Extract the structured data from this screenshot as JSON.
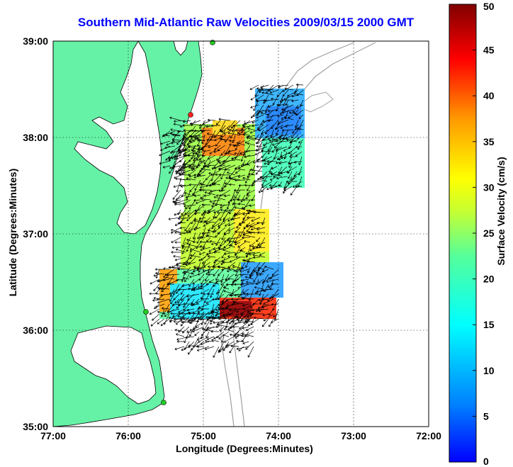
{
  "title": "Southern Mid-Atlantic Raw Velocities 2009/03/15 2000 GMT",
  "axes": {
    "xlabel": "Longitude (Degrees:Minutes)",
    "ylabel": "Latitude (Degrees:Minutes)",
    "xticks": [
      "77:00",
      "76:00",
      "75:00",
      "74:00",
      "73:00",
      "72:00"
    ],
    "yticks": [
      "39:00",
      "38:00",
      "37:00",
      "36:00",
      "35:00"
    ]
  },
  "colorbar": {
    "label": "Surface Velocity (cm/s)",
    "ticks": [
      "0",
      "5",
      "10",
      "15",
      "20",
      "25",
      "30",
      "35",
      "40",
      "45",
      "50"
    ],
    "range": [
      0,
      50
    ],
    "colormap": "jet"
  },
  "colors": {
    "land": "#66f2a6",
    "coastline": "#000000",
    "bathymetry": "#a0a0a0",
    "grid": "#000000",
    "title": "#0000ff",
    "station_red": "#ff2222",
    "station_green": "#22cc22"
  },
  "map_extent": {
    "lon": [
      -77,
      -72
    ],
    "lat": [
      35,
      39
    ]
  },
  "stations": [
    {
      "color": "green",
      "lon": -74.92,
      "lat": 38.98
    },
    {
      "color": "red",
      "lon": -75.1,
      "lat": 38.23
    },
    {
      "color": "green",
      "lon": -75.73,
      "lat": 36.18
    },
    {
      "color": "green",
      "lon": -75.47,
      "lat": 35.25
    }
  ]
}
